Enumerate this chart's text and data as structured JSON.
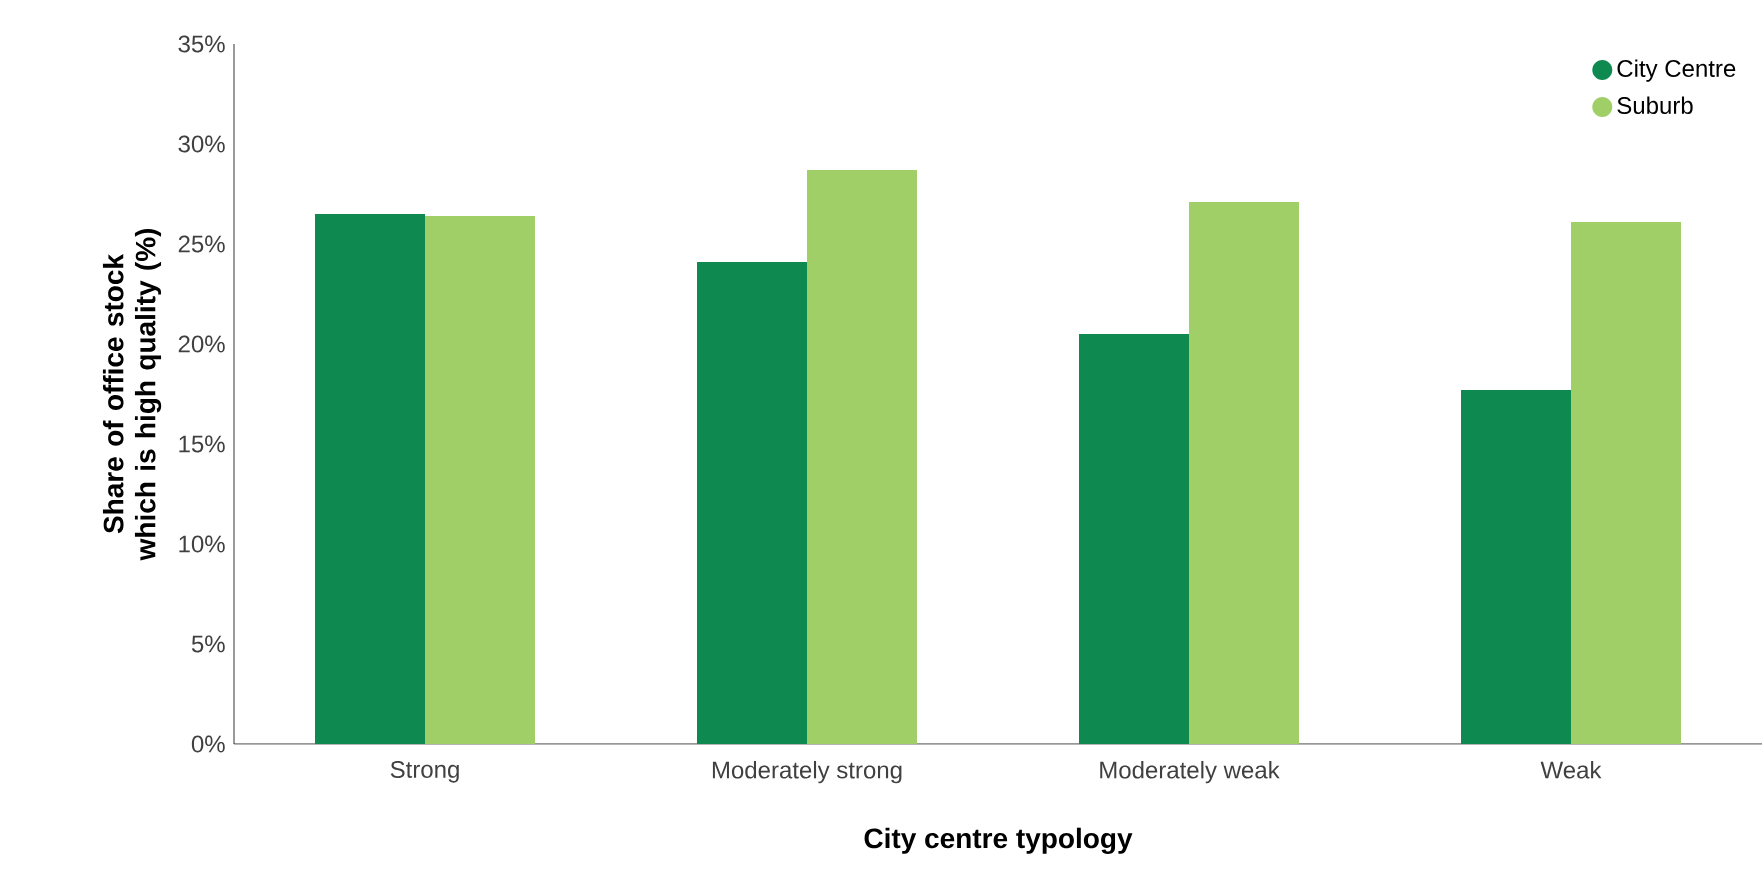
{
  "chart_data": {
    "type": "bar",
    "xlabel": "City centre typology",
    "ylabel": "Share of office stock which is high quality (%)",
    "categories": [
      "Strong",
      "Moderately strong",
      "Moderately weak",
      "Weak"
    ],
    "series": [
      {
        "name": "City Centre",
        "color": "#0e8a50",
        "values": [
          26.5,
          24.1,
          20.5,
          17.7
        ]
      },
      {
        "name": "Suburb",
        "color": "#a0cf67",
        "values": [
          26.4,
          28.7,
          27.1,
          26.1
        ]
      }
    ],
    "ylim": [
      0,
      35
    ],
    "yticks": [
      {
        "value": 0,
        "label": "0%"
      },
      {
        "value": 5,
        "label": "5%"
      },
      {
        "value": 10,
        "label": "10%"
      },
      {
        "value": 15,
        "label": "15%"
      },
      {
        "value": 20,
        "label": "20%"
      },
      {
        "value": 25,
        "label": "25%"
      },
      {
        "value": 30,
        "label": "30%"
      },
      {
        "value": 35,
        "label": "35%"
      }
    ],
    "legend": "top right"
  }
}
